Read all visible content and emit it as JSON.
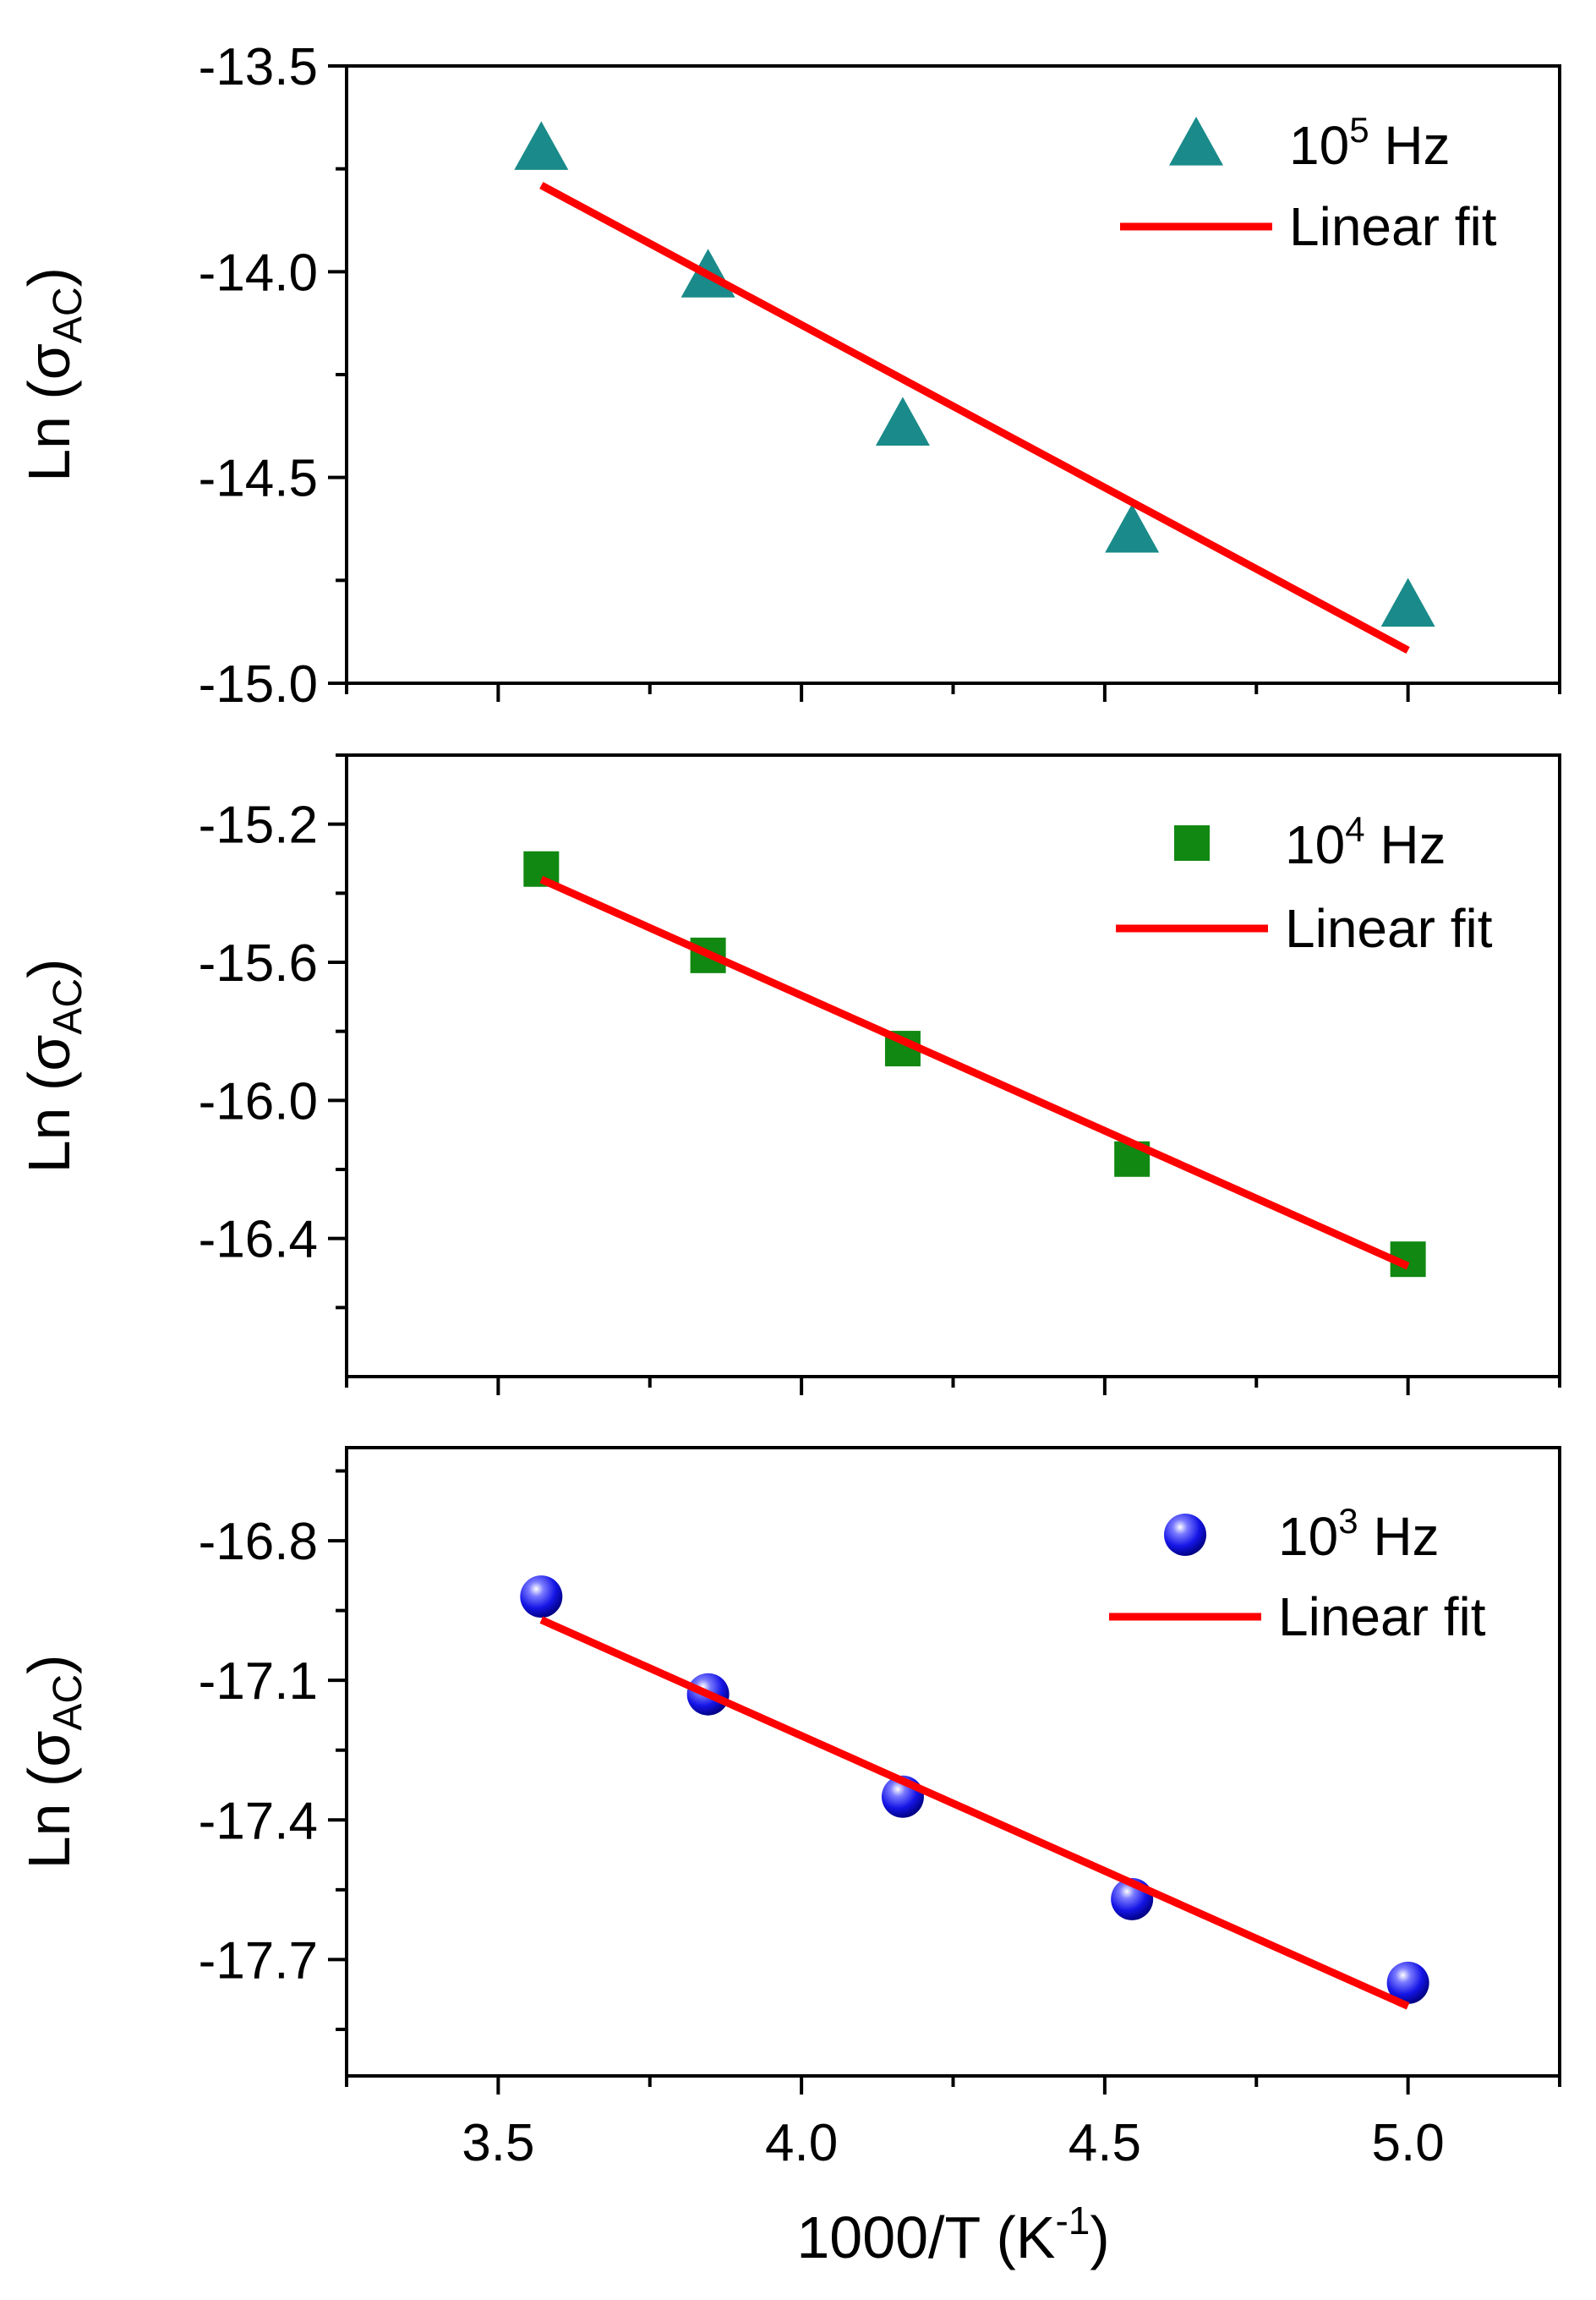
{
  "chart_data": [
    {
      "type": "scatter",
      "panel": "top",
      "ylabel": {
        "prefix": "Ln (",
        "symbol": "σ",
        "subscript": "AC",
        "suffix": ")"
      },
      "xlim": [
        3.25,
        5.25
      ],
      "ylim": [
        -15.0,
        -13.5
      ],
      "yticks": [
        -13.5,
        -14.0,
        -14.5,
        -15.0
      ],
      "ytick_labels": [
        "-13.5",
        "-14.0",
        "-14.5",
        "-15.0"
      ],
      "grid": false,
      "legend_position": "top-right",
      "series": [
        {
          "name": "10^5 Hz",
          "legend": {
            "base": "10",
            "exp": "5",
            "unit": " Hz"
          },
          "marker": "triangle",
          "color": "#1a8a8a",
          "x": [
            3.571,
            3.846,
            4.167,
            4.545,
            5.0
          ],
          "y": [
            -13.7,
            -14.01,
            -14.37,
            -14.63,
            -14.81
          ]
        },
        {
          "name": "Linear fit",
          "kind": "line",
          "color": "#ff0000",
          "x": [
            3.571,
            5.0
          ],
          "y": [
            -13.79,
            -14.92
          ]
        }
      ]
    },
    {
      "type": "scatter",
      "panel": "middle",
      "ylabel": {
        "prefix": "Ln (",
        "symbol": "σ",
        "subscript": "AC",
        "suffix": ")"
      },
      "xlim": [
        3.25,
        5.25
      ],
      "ylim": [
        -16.8,
        -15.0
      ],
      "yticks": [
        -15.2,
        -15.6,
        -16.0,
        -16.4
      ],
      "ytick_labels": [
        "-15.2",
        "-15.6",
        "-16.0",
        "-16.4"
      ],
      "grid": false,
      "legend_position": "top-right",
      "series": [
        {
          "name": "10^4 Hz",
          "legend": {
            "base": "10",
            "exp": "4",
            "unit": " Hz"
          },
          "marker": "square",
          "color": "#118811",
          "x": [
            3.571,
            3.846,
            4.167,
            4.545,
            5.0
          ],
          "y": [
            -15.33,
            -15.58,
            -15.85,
            -16.17,
            -16.46
          ]
        },
        {
          "name": "Linear fit",
          "kind": "line",
          "color": "#ff0000",
          "x": [
            3.571,
            5.0
          ],
          "y": [
            -15.36,
            -16.48
          ]
        }
      ]
    },
    {
      "type": "scatter",
      "panel": "bottom",
      "ylabel": {
        "prefix": "Ln (",
        "symbol": "σ",
        "subscript": "AC",
        "suffix": ")"
      },
      "xlabel": {
        "prefix": "1000/T (K",
        "exp": "-1",
        "suffix": ")"
      },
      "xlim": [
        3.25,
        5.25
      ],
      "ylim": [
        -17.95,
        -16.6
      ],
      "yticks": [
        -16.8,
        -17.1,
        -17.4,
        -17.7
      ],
      "ytick_labels": [
        "-16.8",
        "-17.1",
        "-17.4",
        "-17.7"
      ],
      "xticks": [
        3.5,
        4.0,
        4.5,
        5.0
      ],
      "xtick_labels": [
        "3.5",
        "4.0",
        "4.5",
        "5.0"
      ],
      "grid": false,
      "legend_position": "top-right",
      "series": [
        {
          "name": "10^3 Hz",
          "legend": {
            "base": "10",
            "exp": "3",
            "unit": " Hz"
          },
          "marker": "sphere",
          "color": "#1111ee",
          "x": [
            3.571,
            3.846,
            4.167,
            4.545,
            5.0
          ],
          "y": [
            -16.92,
            -17.13,
            -17.35,
            -17.57,
            -17.75
          ]
        },
        {
          "name": "Linear fit",
          "kind": "line",
          "color": "#ff0000",
          "x": [
            3.571,
            5.0
          ],
          "y": [
            -16.97,
            -17.8
          ]
        }
      ]
    }
  ]
}
